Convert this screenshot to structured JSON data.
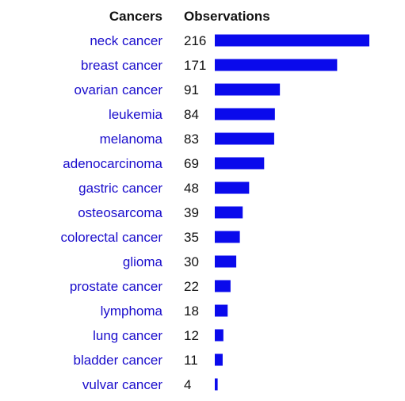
{
  "chart_data": {
    "type": "bar",
    "orientation": "horizontal",
    "category_header": "Cancers",
    "value_header": "Observations",
    "categories": [
      "neck cancer",
      "breast cancer",
      "ovarian cancer",
      "leukemia",
      "melanoma",
      "adenocarcinoma",
      "gastric cancer",
      "osteosarcoma",
      "colorectal cancer",
      "glioma",
      "prostate cancer",
      "lymphoma",
      "lung cancer",
      "bladder cancer",
      "vulvar cancer"
    ],
    "values": [
      216,
      171,
      91,
      84,
      83,
      69,
      48,
      39,
      35,
      30,
      22,
      18,
      12,
      11,
      4
    ],
    "bar_color": "#0a0aec",
    "label_color": "#1a0dcc"
  }
}
